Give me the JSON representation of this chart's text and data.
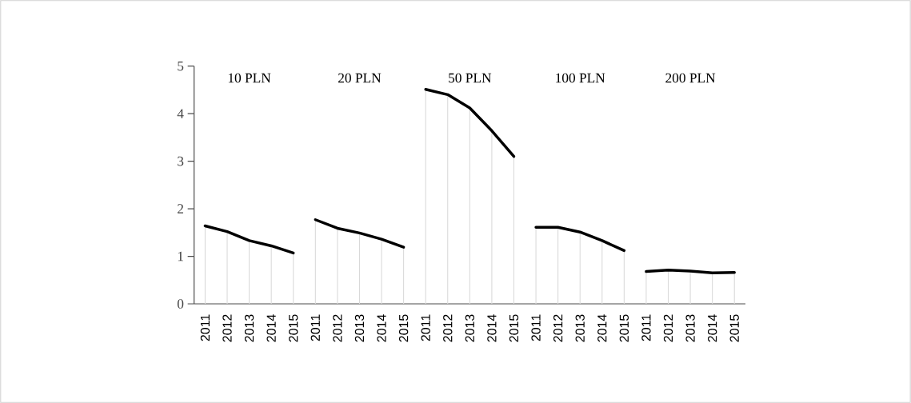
{
  "chart_data": {
    "type": "line",
    "categories": [
      "2011",
      "2012",
      "2013",
      "2014",
      "2015",
      "2011",
      "2012",
      "2013",
      "2014",
      "2015",
      "2011",
      "2012",
      "2013",
      "2014",
      "2015",
      "2011",
      "2012",
      "2013",
      "2014",
      "2015",
      "2011",
      "2012",
      "2013",
      "2014",
      "2015"
    ],
    "series": [
      {
        "type": "bar",
        "color": "#d9d9d9",
        "values": [
          1.64,
          1.52,
          1.33,
          1.22,
          1.07,
          1.77,
          1.59,
          1.49,
          1.36,
          1.19,
          4.51,
          4.4,
          4.12,
          3.64,
          3.1,
          1.61,
          1.61,
          1.51,
          1.33,
          1.12,
          0.68,
          0.71,
          0.69,
          0.65,
          0.66
        ]
      },
      {
        "color": "#000000",
        "values": [
          1.64,
          1.52,
          1.33,
          1.22,
          1.07,
          null,
          null,
          null,
          null,
          null,
          null,
          null,
          null,
          null,
          null,
          null,
          null,
          null,
          null,
          null,
          null,
          null,
          null,
          null,
          null
        ]
      },
      {
        "color": "#000000",
        "values": [
          null,
          null,
          null,
          null,
          null,
          1.77,
          1.59,
          1.49,
          1.36,
          1.19,
          null,
          null,
          null,
          null,
          null,
          null,
          null,
          null,
          null,
          null,
          null,
          null,
          null,
          null,
          null
        ]
      },
      {
        "color": "#000000",
        "values": [
          null,
          null,
          null,
          null,
          null,
          null,
          null,
          null,
          null,
          null,
          4.51,
          4.4,
          4.12,
          3.64,
          3.1,
          null,
          null,
          null,
          null,
          null,
          null,
          null,
          null,
          null,
          null
        ]
      },
      {
        "color": "#000000",
        "values": [
          null,
          null,
          null,
          null,
          null,
          null,
          null,
          null,
          null,
          null,
          null,
          null,
          null,
          null,
          null,
          1.61,
          1.61,
          1.51,
          1.33,
          1.12,
          null,
          null,
          null,
          null,
          null
        ]
      },
      {
        "color": "#000000",
        "values": [
          null,
          null,
          null,
          null,
          null,
          null,
          null,
          null,
          null,
          null,
          null,
          null,
          null,
          null,
          null,
          null,
          null,
          null,
          null,
          null,
          0.68,
          0.71,
          0.69,
          0.65,
          0.66
        ]
      }
    ],
    "annotations": [
      "10 PLN",
      "20 PLN",
      "50 PLN",
      "100 PLN",
      "200 PLN"
    ],
    "ylim": [
      0,
      5
    ],
    "yticks": [
      0,
      1,
      2,
      3,
      4,
      5
    ],
    "grid": false,
    "marker": "none",
    "line_style": "solid"
  }
}
